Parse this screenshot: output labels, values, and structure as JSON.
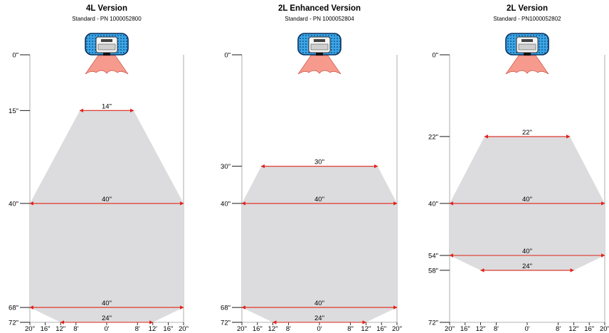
{
  "panels": [
    {
      "title": "4L Version",
      "subtitle": "Standard - PN 1000052800",
      "depth_ticks": [
        "0\"",
        "15\"",
        "40\"",
        "68\"",
        "72\""
      ],
      "width_ticks": [
        "20\"",
        "16\"",
        "12\"",
        "8'",
        "0'",
        "8'",
        "12'",
        "16\"",
        "20\""
      ],
      "width_labels": [
        "14\"",
        "40\"",
        "40\"",
        "24\""
      ]
    },
    {
      "title": "2L Enhanced Version",
      "subtitle": "Standard - PN 1000052804",
      "depth_ticks": [
        "0\"",
        "30\"",
        "40\"",
        "68\"",
        "72\""
      ],
      "width_ticks": [
        "20\"",
        "16\"",
        "12\"",
        "8'",
        "0'",
        "8\"",
        "12\"",
        "16\"",
        "20\""
      ],
      "width_labels": [
        "30\"",
        "40\"",
        "40\"",
        "24\""
      ]
    },
    {
      "title": "2L Version",
      "subtitle": "Standard - PN1000052802",
      "depth_ticks": [
        "0\"",
        "22\"",
        "40\"",
        "54\"",
        "58\"",
        "72\""
      ],
      "width_ticks": [
        "20\"",
        "16\"",
        "12\"",
        "8'",
        "0'",
        "8'",
        "12\"",
        "16\"",
        "20\""
      ],
      "width_labels": [
        "22\"",
        "40\"",
        "40\"",
        "24\""
      ]
    }
  ],
  "colors": {
    "coverage_fill": "#dcdcde",
    "arrow": "#e0241b",
    "beam": "#f59a8c",
    "beam_stroke": "#c0392b",
    "sensor_body": "#2d9fe0",
    "frame": "#9a9a9a"
  },
  "icons": {
    "sensor": "sensor-device-icon",
    "beam": "detection-beam-icon"
  }
}
